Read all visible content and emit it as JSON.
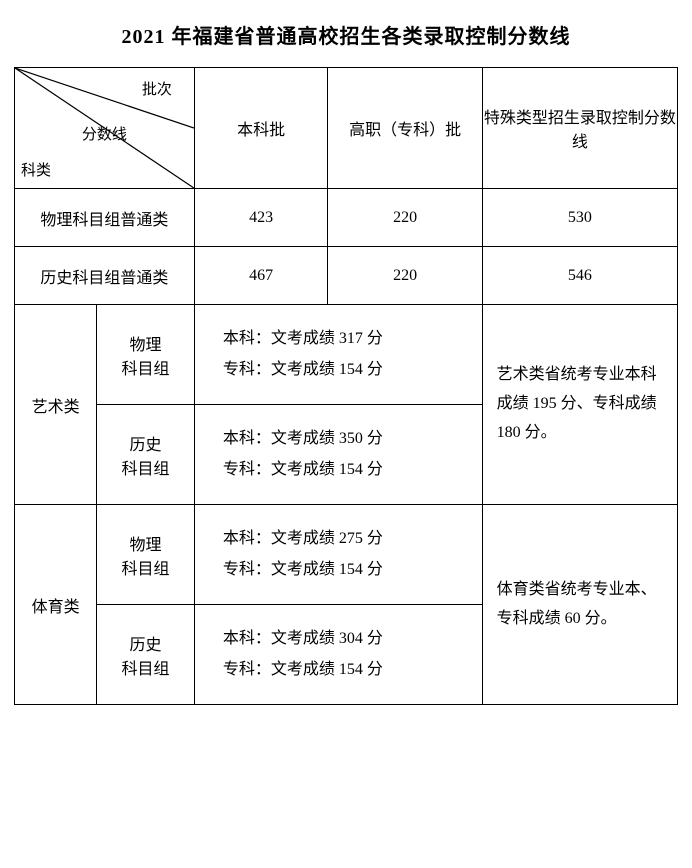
{
  "title": "2021 年福建省普通高校招生各类录取控制分数线",
  "diag": {
    "pici": "批次",
    "fenshu": "分数线",
    "kelei": "科类"
  },
  "headers": {
    "benke": "本科批",
    "gaozhi": "高职（专科）批",
    "teshu": "特殊类型招生录取控制分数线"
  },
  "simple_rows": [
    {
      "name": "物理科目组普通类",
      "benke": "423",
      "gaozhi": "220",
      "teshu": "530"
    },
    {
      "name": "历史科目组普通类",
      "benke": "467",
      "gaozhi": "220",
      "teshu": "546"
    }
  ],
  "groups": [
    {
      "category": "艺术类",
      "subs": [
        {
          "label": "物理\n科目组",
          "line1": "本科：文考成绩 317 分",
          "line2": "专科：文考成绩 154 分"
        },
        {
          "label": "历史\n科目组",
          "line1": "本科：文考成绩 350 分",
          "line2": "专科：文考成绩 154 分"
        }
      ],
      "note": "艺术类省统考专业本科成绩 195 分、专科成绩 180 分。"
    },
    {
      "category": "体育类",
      "subs": [
        {
          "label": "物理\n科目组",
          "line1": "本科：文考成绩 275 分",
          "line2": "专科：文考成绩 154 分"
        },
        {
          "label": "历史\n科目组",
          "line1": "本科：文考成绩 304 分",
          "line2": "专科：文考成绩 154 分"
        }
      ],
      "note": "体育类省统考专业本、专科成绩 60 分。"
    }
  ]
}
